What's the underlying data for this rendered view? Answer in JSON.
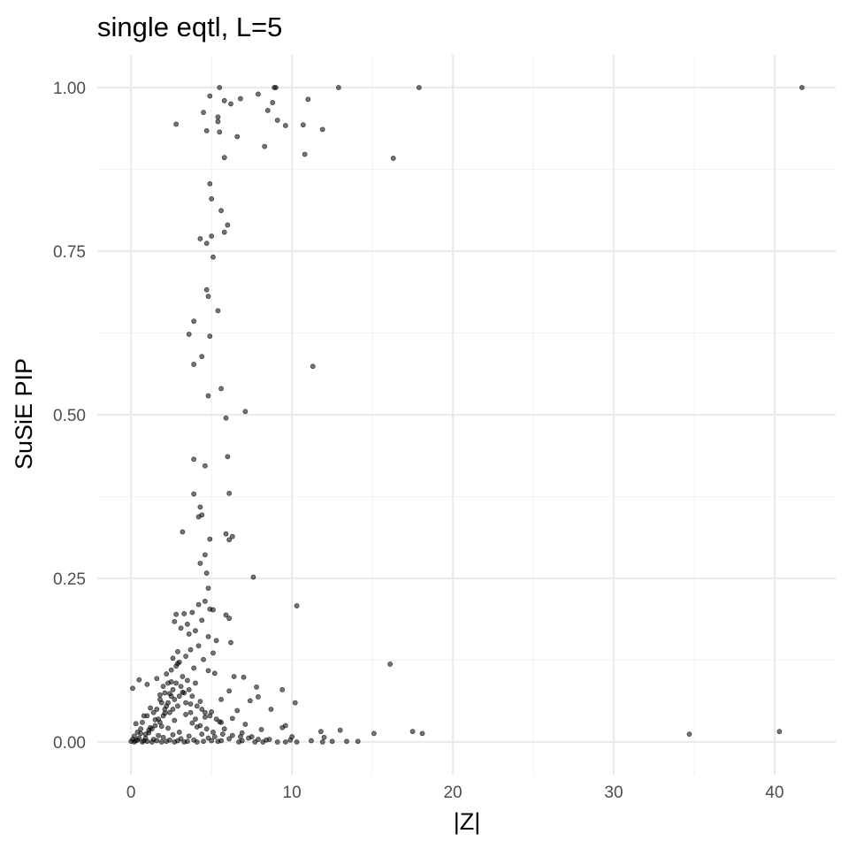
{
  "chart_data": {
    "type": "scatter",
    "title": "single eqtl, L=5",
    "xlabel": "|Z|",
    "ylabel": "SuSiE PIP",
    "xlim": [
      -2.1,
      43.8
    ],
    "ylim": [
      -0.05,
      1.05
    ],
    "x_ticks": [
      0,
      10,
      20,
      30,
      40
    ],
    "x_tick_labels": [
      "0",
      "10",
      "20",
      "30",
      "40"
    ],
    "y_ticks": [
      0,
      0.25,
      0.5,
      0.75,
      1
    ],
    "y_tick_labels": [
      "0.00",
      "0.25",
      "0.50",
      "0.75",
      "1.00"
    ],
    "x_minor": [
      5,
      15,
      25,
      35
    ],
    "y_minor": [
      0.125,
      0.375,
      0.625,
      0.875
    ],
    "grid": true,
    "point_color": "#000000",
    "points": [
      [
        5.5,
        1.0
      ],
      [
        9.0,
        1.0
      ],
      [
        8.9,
        1.0
      ],
      [
        12.9,
        1.0
      ],
      [
        17.9,
        1.0
      ],
      [
        41.7,
        1.0
      ],
      [
        4.9,
        0.987
      ],
      [
        6.8,
        0.983
      ],
      [
        7.9,
        0.99
      ],
      [
        11.0,
        0.982
      ],
      [
        6.2,
        0.975
      ],
      [
        5.8,
        0.98
      ],
      [
        8.8,
        0.977
      ],
      [
        4.5,
        0.962
      ],
      [
        5.4,
        0.955
      ],
      [
        8.5,
        0.965
      ],
      [
        5.4,
        0.948
      ],
      [
        9.1,
        0.95
      ],
      [
        2.8,
        0.944
      ],
      [
        9.6,
        0.942
      ],
      [
        10.7,
        0.943
      ],
      [
        4.7,
        0.934
      ],
      [
        5.5,
        0.932
      ],
      [
        11.9,
        0.936
      ],
      [
        6.6,
        0.925
      ],
      [
        8.3,
        0.91
      ],
      [
        10.8,
        0.898
      ],
      [
        5.8,
        0.893
      ],
      [
        16.3,
        0.892
      ],
      [
        4.9,
        0.853
      ],
      [
        5.0,
        0.83
      ],
      [
        5.6,
        0.812
      ],
      [
        6.0,
        0.79
      ],
      [
        5.8,
        0.779
      ],
      [
        5.0,
        0.773
      ],
      [
        4.3,
        0.769
      ],
      [
        4.7,
        0.762
      ],
      [
        5.1,
        0.741
      ],
      [
        4.7,
        0.691
      ],
      [
        4.8,
        0.681
      ],
      [
        5.4,
        0.659
      ],
      [
        3.9,
        0.643
      ],
      [
        3.6,
        0.623
      ],
      [
        4.9,
        0.62
      ],
      [
        4.4,
        0.589
      ],
      [
        3.9,
        0.577
      ],
      [
        11.3,
        0.574
      ],
      [
        5.6,
        0.54
      ],
      [
        4.8,
        0.529
      ],
      [
        7.1,
        0.505
      ],
      [
        5.9,
        0.495
      ],
      [
        6.0,
        0.436
      ],
      [
        3.9,
        0.432
      ],
      [
        4.6,
        0.422
      ],
      [
        6.1,
        0.38
      ],
      [
        3.9,
        0.379
      ],
      [
        4.3,
        0.359
      ],
      [
        4.4,
        0.347
      ],
      [
        4.2,
        0.344
      ],
      [
        3.2,
        0.321
      ],
      [
        5.9,
        0.318
      ],
      [
        6.3,
        0.314
      ],
      [
        4.9,
        0.31
      ],
      [
        6.1,
        0.309
      ],
      [
        4.6,
        0.286
      ],
      [
        4.3,
        0.273
      ],
      [
        4.7,
        0.258
      ],
      [
        7.6,
        0.252
      ],
      [
        4.8,
        0.235
      ],
      [
        4.6,
        0.215
      ],
      [
        10.3,
        0.208
      ],
      [
        4.2,
        0.21
      ],
      [
        4.9,
        0.203
      ],
      [
        5.1,
        0.202
      ],
      [
        3.8,
        0.198
      ],
      [
        2.8,
        0.195
      ],
      [
        3.3,
        0.196
      ],
      [
        5.9,
        0.194
      ],
      [
        6.1,
        0.189
      ],
      [
        4.4,
        0.186
      ],
      [
        2.7,
        0.184
      ],
      [
        3.5,
        0.18
      ],
      [
        3.1,
        0.174
      ],
      [
        4.0,
        0.17
      ],
      [
        3.6,
        0.165
      ],
      [
        4.8,
        0.161
      ],
      [
        5.3,
        0.155
      ],
      [
        6.2,
        0.152
      ],
      [
        4.2,
        0.147
      ],
      [
        3.7,
        0.141
      ],
      [
        2.9,
        0.138
      ],
      [
        5.1,
        0.136
      ],
      [
        3.4,
        0.131
      ],
      [
        2.6,
        0.128
      ],
      [
        4.5,
        0.126
      ],
      [
        3.0,
        0.122
      ],
      [
        16.1,
        0.119
      ],
      [
        2.8,
        0.116
      ],
      [
        3.9,
        0.113
      ],
      [
        4.8,
        0.109
      ],
      [
        5.2,
        0.105
      ],
      [
        2.2,
        0.104
      ],
      [
        6.4,
        0.1
      ],
      [
        7.0,
        0.099
      ],
      [
        1.6,
        0.097
      ],
      [
        0.5,
        0.095
      ],
      [
        3.5,
        0.094
      ],
      [
        2.5,
        0.092
      ],
      [
        4.0,
        0.09
      ],
      [
        1.0,
        0.088
      ],
      [
        0.1,
        0.082
      ],
      [
        9.4,
        0.08
      ],
      [
        7.8,
        0.084
      ],
      [
        6.1,
        0.078
      ],
      [
        3.2,
        0.076
      ],
      [
        2.4,
        0.074
      ],
      [
        1.8,
        0.072
      ],
      [
        7.4,
        0.063
      ],
      [
        7.9,
        0.069
      ],
      [
        5.6,
        0.065
      ],
      [
        4.3,
        0.062
      ],
      [
        3.7,
        0.058
      ],
      [
        2.9,
        0.055
      ],
      [
        10.2,
        0.06
      ],
      [
        1.2,
        0.052
      ],
      [
        8.7,
        0.05
      ],
      [
        6.6,
        0.048
      ],
      [
        5.0,
        0.046
      ],
      [
        2.1,
        0.044
      ],
      [
        3.4,
        0.042
      ],
      [
        0.8,
        0.04
      ],
      [
        4.6,
        0.038
      ],
      [
        6.3,
        0.036
      ],
      [
        1.5,
        0.034
      ],
      [
        2.7,
        0.033
      ],
      [
        5.5,
        0.031
      ],
      [
        3.8,
        0.029
      ],
      [
        0.3,
        0.028
      ],
      [
        7.1,
        0.027
      ],
      [
        9.6,
        0.025
      ],
      [
        9.4,
        0.022
      ],
      [
        1.9,
        0.024
      ],
      [
        4.1,
        0.023
      ],
      [
        2.3,
        0.021
      ],
      [
        5.8,
        0.02
      ],
      [
        8.1,
        0.019
      ],
      [
        13.0,
        0.018
      ],
      [
        17.5,
        0.016
      ],
      [
        11.8,
        0.016
      ],
      [
        40.3,
        0.016
      ],
      [
        15.1,
        0.013
      ],
      [
        18.1,
        0.013
      ],
      [
        34.7,
        0.012
      ],
      [
        6.9,
        0.014
      ],
      [
        3.0,
        0.015
      ],
      [
        1.1,
        0.014
      ],
      [
        0.6,
        0.013
      ],
      [
        4.4,
        0.012
      ],
      [
        2.6,
        0.011
      ],
      [
        1.7,
        0.01
      ],
      [
        0.2,
        0.009
      ],
      [
        3.6,
        0.009
      ],
      [
        10.0,
        0.008
      ],
      [
        5.2,
        0.008
      ],
      [
        7.5,
        0.008
      ],
      [
        12.0,
        0.007
      ],
      [
        2.0,
        0.007
      ],
      [
        0.9,
        0.006
      ],
      [
        4.8,
        0.006
      ],
      [
        6.1,
        0.005
      ],
      [
        3.1,
        0.005
      ],
      [
        8.6,
        0.004
      ],
      [
        1.4,
        0.004
      ],
      [
        9.9,
        0.003
      ],
      [
        0.4,
        0.003
      ],
      [
        2.4,
        0.003
      ],
      [
        5.6,
        0.002
      ],
      [
        11.2,
        0.002
      ],
      [
        6.9,
        0.002
      ],
      [
        12.5,
        0.001
      ],
      [
        13.4,
        0.001
      ],
      [
        14.1,
        0.001
      ],
      [
        11.9,
        0.0
      ],
      [
        10.3,
        0.0
      ],
      [
        9.1,
        0.0
      ],
      [
        9.6,
        0.0
      ],
      [
        8.2,
        0.0
      ],
      [
        7.7,
        0.0
      ],
      [
        6.7,
        0.0
      ],
      [
        4.1,
        0.0
      ],
      [
        3.3,
        0.0
      ],
      [
        2.7,
        0.0
      ],
      [
        1.9,
        0.0
      ],
      [
        1.3,
        0.0
      ],
      [
        0.7,
        0.0
      ],
      [
        0.2,
        0.0
      ],
      [
        0.0,
        0.001
      ],
      [
        0.1,
        0.004
      ],
      [
        0.3,
        0.002
      ],
      [
        0.5,
        0.006
      ],
      [
        0.8,
        0.002
      ],
      [
        1.0,
        0.001
      ],
      [
        1.6,
        0.002
      ],
      [
        2.2,
        0.001
      ],
      [
        2.9,
        0.002
      ],
      [
        3.5,
        0.001
      ],
      [
        3.9,
        0.003
      ],
      [
        4.5,
        0.001
      ],
      [
        5.0,
        0.002
      ],
      [
        5.4,
        0.001
      ],
      [
        1.3,
        0.02
      ],
      [
        1.8,
        0.03
      ],
      [
        2.1,
        0.05
      ],
      [
        2.3,
        0.06
      ],
      [
        2.5,
        0.07
      ],
      [
        2.6,
        0.08
      ],
      [
        1.5,
        0.025
      ],
      [
        1.1,
        0.018
      ],
      [
        0.9,
        0.012
      ],
      [
        2.0,
        0.04
      ],
      [
        2.8,
        0.09
      ],
      [
        3.2,
        0.1
      ],
      [
        2.4,
        0.045
      ],
      [
        1.7,
        0.035
      ],
      [
        1.2,
        0.022
      ],
      [
        2.2,
        0.055
      ],
      [
        2.7,
        0.065
      ],
      [
        3.0,
        0.07
      ],
      [
        0.6,
        0.02
      ],
      [
        0.4,
        0.015
      ],
      [
        1.4,
        0.045
      ],
      [
        1.9,
        0.06
      ],
      [
        2.1,
        0.075
      ],
      [
        2.6,
        0.05
      ],
      [
        3.4,
        0.06
      ],
      [
        3.7,
        0.045
      ],
      [
        4.0,
        0.035
      ],
      [
        4.3,
        0.025
      ],
      [
        4.7,
        0.02
      ],
      [
        5.1,
        0.015
      ],
      [
        5.7,
        0.012
      ],
      [
        6.3,
        0.01
      ],
      [
        6.8,
        0.008
      ],
      [
        7.3,
        0.006
      ],
      [
        7.9,
        0.004
      ],
      [
        8.4,
        0.003
      ],
      [
        0.7,
        0.03
      ],
      [
        1.0,
        0.04
      ],
      [
        1.6,
        0.05
      ],
      [
        1.8,
        0.065
      ],
      [
        2.0,
        0.085
      ],
      [
        2.3,
        0.09
      ],
      [
        2.5,
        0.11
      ],
      [
        2.9,
        0.12
      ],
      [
        3.1,
        0.085
      ],
      [
        3.3,
        0.075
      ],
      [
        3.6,
        0.08
      ],
      [
        3.8,
        0.07
      ],
      [
        4.1,
        0.055
      ],
      [
        4.4,
        0.05
      ],
      [
        4.6,
        0.045
      ],
      [
        4.9,
        0.04
      ],
      [
        5.3,
        0.035
      ],
      [
        5.6,
        0.03
      ]
    ]
  }
}
